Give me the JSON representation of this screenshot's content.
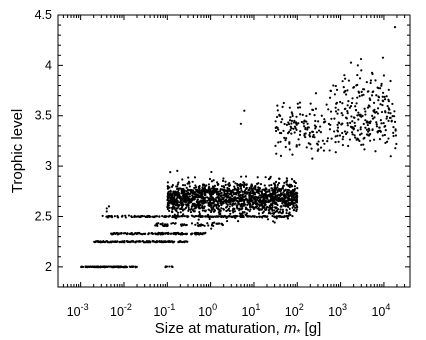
{
  "chart_data": {
    "type": "scatter",
    "xlabel_text": "Size at maturation, ",
    "xlabel_symbol": "m",
    "xlabel_subscript": "*",
    "xlabel_unit": " [g]",
    "ylabel": "Trophic level",
    "x_scale": "log",
    "x_range": [
      0.0003,
      40000
    ],
    "ylim": [
      1.8,
      4.5
    ],
    "x_ticks": [
      {
        "base": "10",
        "exp": "-3",
        "value": 0.001
      },
      {
        "base": "10",
        "exp": "-2",
        "value": 0.01
      },
      {
        "base": "10",
        "exp": "-1",
        "value": 0.1
      },
      {
        "base": "10",
        "exp": "0",
        "value": 1
      },
      {
        "base": "10",
        "exp": "1",
        "value": 10
      },
      {
        "base": "10",
        "exp": "2",
        "value": 100
      },
      {
        "base": "10",
        "exp": "3",
        "value": 1000
      },
      {
        "base": "10",
        "exp": "4",
        "value": 10000
      }
    ],
    "y_ticks": [
      {
        "label": "2",
        "value": 2
      },
      {
        "label": "2.5",
        "value": 2.5
      },
      {
        "label": "3",
        "value": 3
      },
      {
        "label": "3.5",
        "value": 3.5
      },
      {
        "label": "4",
        "value": 4
      },
      {
        "label": "4.5",
        "value": 4.5
      }
    ],
    "grid": false,
    "marker_color": "#000000",
    "clusters": [
      {
        "x_range": [
          0.001,
          0.02
        ],
        "y_level": 2.0,
        "count": 120,
        "jitter": 0.004
      },
      {
        "x_range": [
          0.08,
          0.15
        ],
        "y_level": 2.0,
        "count": 8,
        "jitter": 0.004
      },
      {
        "x_range": [
          0.002,
          0.3
        ],
        "y_level": 2.25,
        "count": 140,
        "jitter": 0.006
      },
      {
        "x_range": [
          0.005,
          0.8
        ],
        "y_level": 2.33,
        "count": 140,
        "jitter": 0.008
      },
      {
        "x_range": [
          0.003,
          0.02
        ],
        "y_level": 2.5,
        "count": 25,
        "jitter": 0.01
      },
      {
        "x_range": [
          0.02,
          80
        ],
        "y_level": 2.5,
        "count": 180,
        "jitter": 0.006
      },
      {
        "x_range": [
          0.05,
          2
        ],
        "y_level": 2.42,
        "count": 60,
        "jitter": 0.015
      },
      {
        "x_range": [
          0.1,
          100
        ],
        "y_mean": 2.68,
        "y_sd": 0.08,
        "count": 1500
      },
      {
        "x_range": [
          30,
          20000
        ],
        "y_mean": 3.38,
        "y_sd": 0.12,
        "count": 280
      },
      {
        "x_range": [
          500,
          15000
        ],
        "y_mean": 3.65,
        "y_sd": 0.15,
        "count": 120
      }
    ],
    "points": [
      {
        "x": 0.004,
        "y": 2.58
      },
      {
        "x": 0.004,
        "y": 2.55
      },
      {
        "x": 0.0045,
        "y": 2.6
      },
      {
        "x": 5,
        "y": 3.42
      },
      {
        "x": 6,
        "y": 3.55
      },
      {
        "x": 2500,
        "y": 4.0
      },
      {
        "x": 18000,
        "y": 4.38
      },
      {
        "x": 3000,
        "y": 3.95
      },
      {
        "x": 10000,
        "y": 3.9
      },
      {
        "x": 5000,
        "y": 3.85
      },
      {
        "x": 1,
        "y": 2.5
      },
      {
        "x": 2,
        "y": 2.5
      }
    ]
  }
}
